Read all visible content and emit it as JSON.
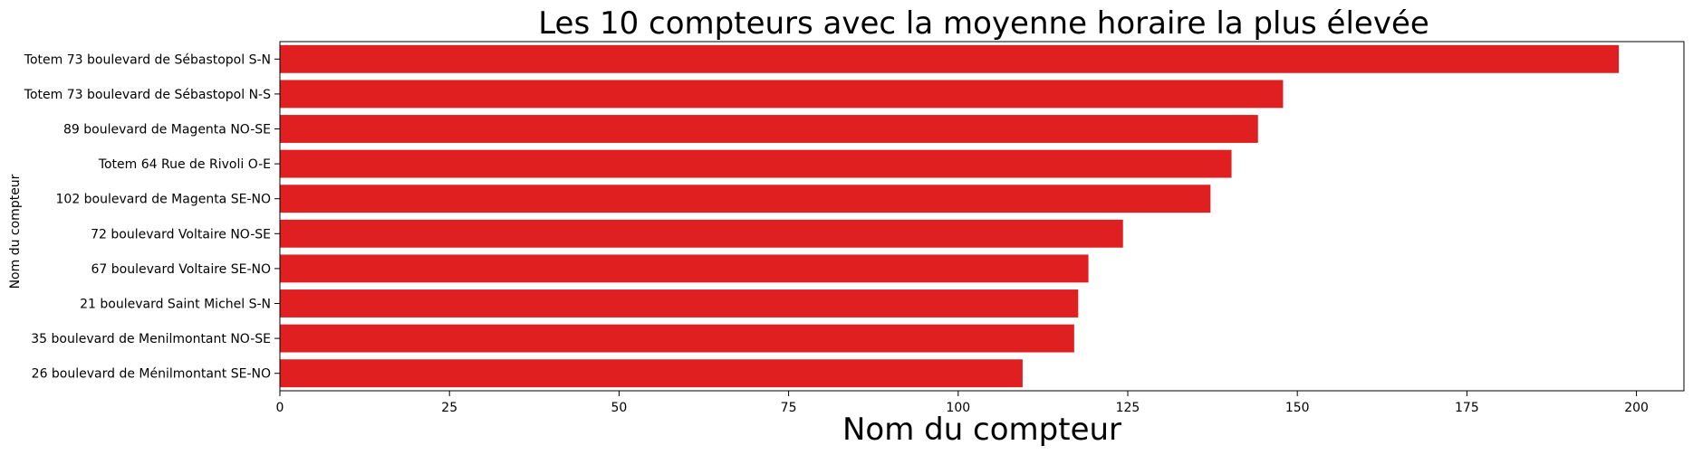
{
  "chart_data": {
    "type": "bar",
    "orientation": "horizontal",
    "title": "Les 10 compteurs avec la moyenne horaire la plus élevée",
    "xlabel": "Nom du compteur",
    "ylabel": "Nom du compteur",
    "categories": [
      "Totem 73 boulevard de Sébastopol S-N",
      "Totem 73 boulevard de Sébastopol N-S",
      "89 boulevard de Magenta NO-SE",
      "Totem 64 Rue de Rivoli O-E",
      "102 boulevard de Magenta SE-NO",
      "72 boulevard Voltaire NO-SE",
      "67 boulevard Voltaire SE-NO",
      "21 boulevard Saint Michel S-N",
      "35 boulevard de Menilmontant NO-SE",
      "26 boulevard de Ménilmontant SE-NO"
    ],
    "values": [
      197.4,
      147.9,
      144.2,
      140.3,
      137.2,
      124.3,
      119.2,
      117.7,
      117.1,
      109.5
    ],
    "xlim": [
      0,
      207
    ],
    "xticks": [
      0,
      25,
      50,
      75,
      100,
      125,
      150,
      175,
      200
    ],
    "bar_color": "#e02020",
    "grid": false
  }
}
